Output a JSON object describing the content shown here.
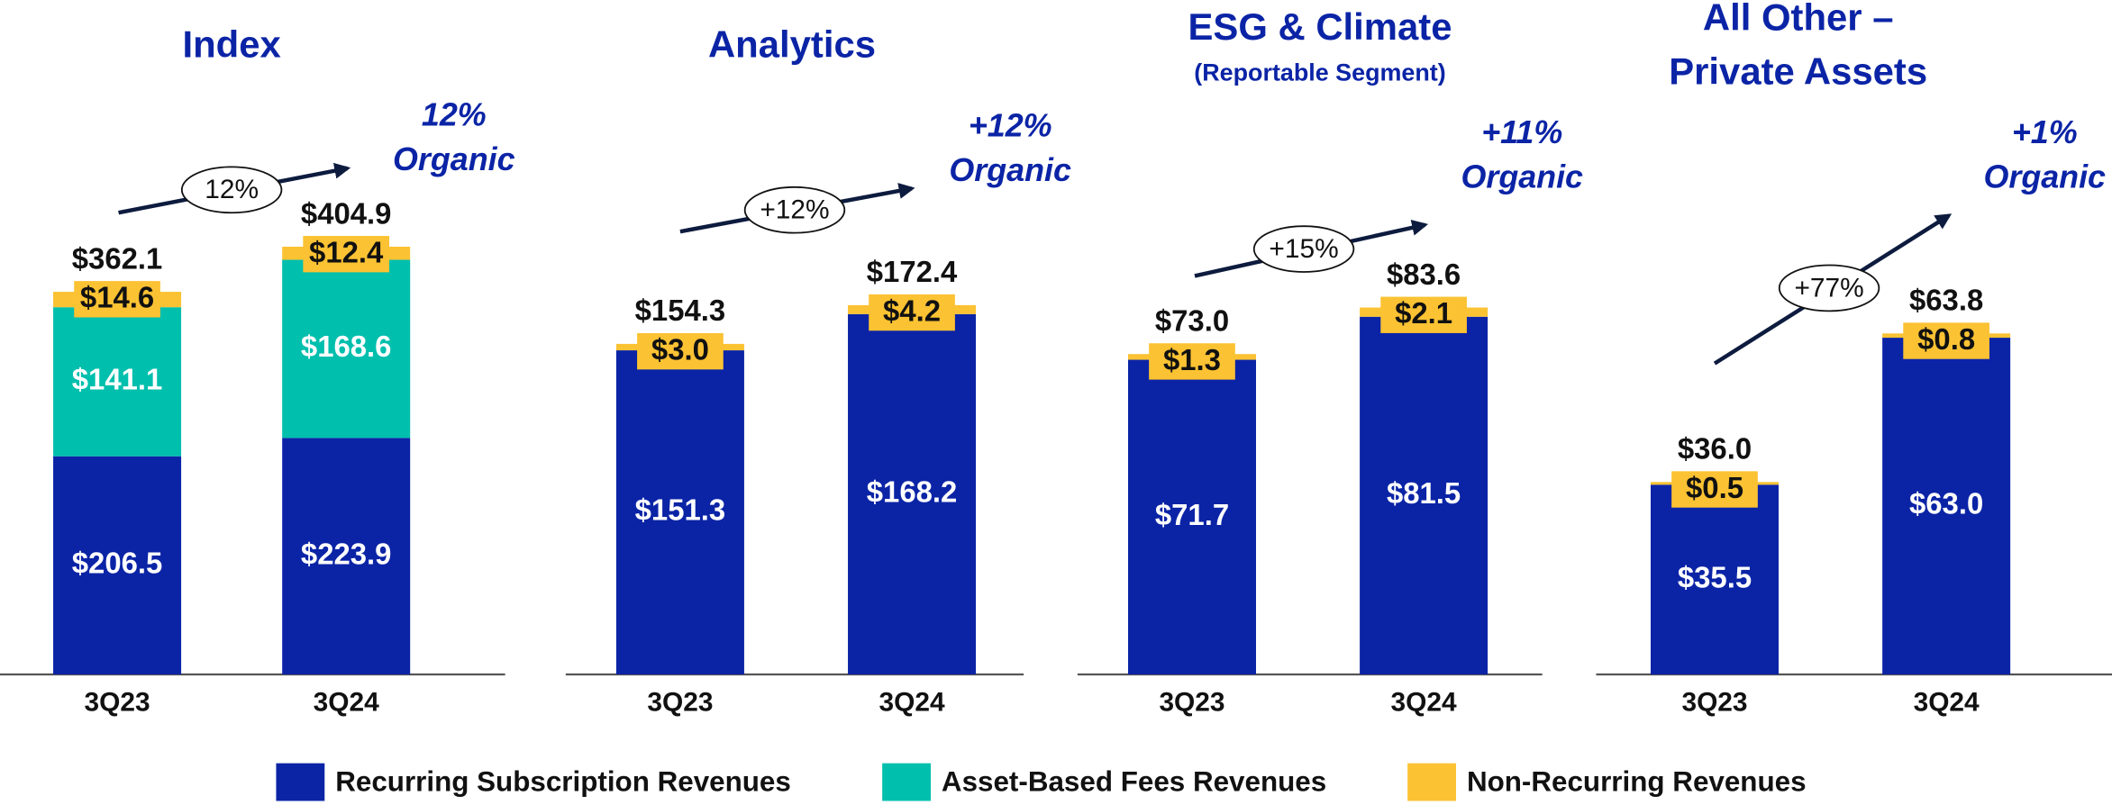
{
  "chart_data": [
    {
      "type": "bar",
      "title": "Index",
      "categories": [
        "3Q23",
        "3Q24"
      ],
      "series": [
        {
          "name": "Recurring Subscription Revenues",
          "color": "#0b24a6",
          "values": [
            206.5,
            223.9
          ],
          "value_labels": [
            "$206.5",
            "$223.9"
          ]
        },
        {
          "name": "Asset-Based Fees Revenues",
          "color": "#00bfad",
          "values": [
            141.1,
            168.6
          ],
          "value_labels": [
            "$141.1",
            "$168.6"
          ]
        },
        {
          "name": "Non-Recurring Revenues",
          "color": "#fbc233",
          "values": [
            14.6,
            12.4
          ],
          "value_labels": [
            "$14.6",
            "$12.4"
          ]
        }
      ],
      "totals": [
        362.1,
        404.9
      ],
      "total_labels": [
        "$362.1",
        "$404.9"
      ],
      "growth": "12%",
      "annotation": [
        "12%",
        "Organic"
      ],
      "ylim": [
        0,
        511
      ]
    },
    {
      "type": "bar",
      "title": "Analytics",
      "categories": [
        "3Q23",
        "3Q24"
      ],
      "series": [
        {
          "name": "Recurring Subscription Revenues",
          "color": "#0b24a6",
          "values": [
            151.3,
            168.2
          ],
          "value_labels": [
            "$151.3",
            "$168.2"
          ]
        },
        {
          "name": "Non-Recurring Revenues",
          "color": "#fbc233",
          "values": [
            3.0,
            4.2
          ],
          "value_labels": [
            "$3.0",
            "$4.2"
          ]
        }
      ],
      "totals": [
        154.3,
        172.4
      ],
      "total_labels": [
        "$154.3",
        "$172.4"
      ],
      "growth": "+12%",
      "annotation": [
        "+12%",
        "Organic"
      ],
      "ylim": [
        0,
        252
      ]
    },
    {
      "type": "bar",
      "title": "ESG & Climate",
      "subtitle": "(Reportable Segment)",
      "categories": [
        "3Q23",
        "3Q24"
      ],
      "series": [
        {
          "name": "Recurring Subscription Revenues",
          "color": "#0b24a6",
          "values": [
            71.7,
            81.5
          ],
          "value_labels": [
            "$71.7",
            "$81.5"
          ]
        },
        {
          "name": "Non-Recurring Revenues",
          "color": "#fbc233",
          "values": [
            1.3,
            2.1
          ],
          "value_labels": [
            "$1.3",
            "$2.1"
          ]
        }
      ],
      "totals": [
        73.0,
        83.6
      ],
      "total_labels": [
        "$73.0",
        "$83.6"
      ],
      "growth": "+15%",
      "annotation": [
        "+11%",
        "Organic"
      ],
      "ylim": [
        0,
        123
      ]
    },
    {
      "type": "bar",
      "title": [
        "All Other –",
        "Private Assets"
      ],
      "categories": [
        "3Q23",
        "3Q24"
      ],
      "series": [
        {
          "name": "Recurring Subscription Revenues",
          "color": "#0b24a6",
          "values": [
            35.5,
            63.0
          ],
          "value_labels": [
            "$35.5",
            "$63.0"
          ]
        },
        {
          "name": "Non-Recurring Revenues",
          "color": "#fbc233",
          "values": [
            0.5,
            0.8
          ],
          "value_labels": [
            "$0.5",
            "$0.8"
          ]
        }
      ],
      "totals": [
        36.0,
        63.8
      ],
      "total_labels": [
        "$36.0",
        "$63.8"
      ],
      "growth": "+77%",
      "annotation": [
        "+1%",
        "Organic"
      ],
      "ylim": [
        0,
        101
      ]
    }
  ]
}
